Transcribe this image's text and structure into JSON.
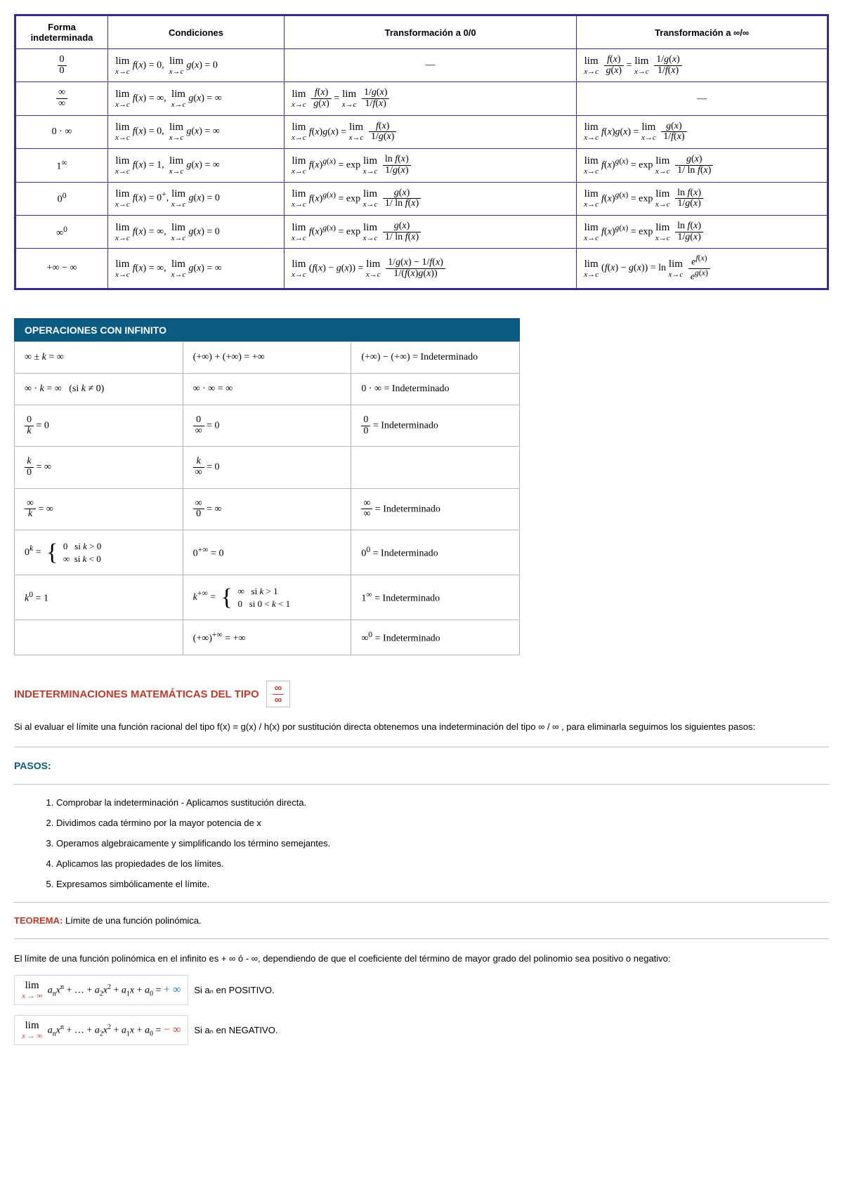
{
  "table1": {
    "border_color": "#3a2b8a",
    "headers": [
      "Forma indeterminada",
      "Condiciones",
      "Transformación a 0/0",
      "Transformación a ∞/∞"
    ]
  },
  "table2": {
    "header": "OPERACIONES CON INFINITO",
    "header_bg": "#0b5a80",
    "indet": "Indeterminado"
  },
  "section": {
    "title": "INDETERMINACIONES MATEMÁTICAS DEL TIPO",
    "intro": "Si al evaluar el límite una función racional del tipo f(x) = g(x) / h(x) por sustitución directa obtenemos una indeterminación del tipo ∞ / ∞ , para eliminarla seguimos los siguientes pasos:",
    "pasos_label": "PASOS:",
    "steps": [
      "Comprobar la indeterminación - Aplicamos sustitución directa.",
      "Dividimos cada término por la mayor potencia de x",
      "Operamos algebraicamente y simplificando los término semejantes.",
      "Aplicamos las propiedades de los límites.",
      "Expresamos simbólicamente el límite."
    ],
    "teorema_label": "TEOREMA:",
    "teorema_text": "Límite de una función polinómica.",
    "teorema_body": "El límite de una función polinómica en el infinito es + ∞ ó - ∞, dependiendo de que el coeficiente del término de mayor grado del polinomio sea positivo o negativo:",
    "poly_pos_tail": "Si aₙ en POSITIVO.",
    "poly_neg_tail": "Si aₙ en NEGATIVO."
  }
}
